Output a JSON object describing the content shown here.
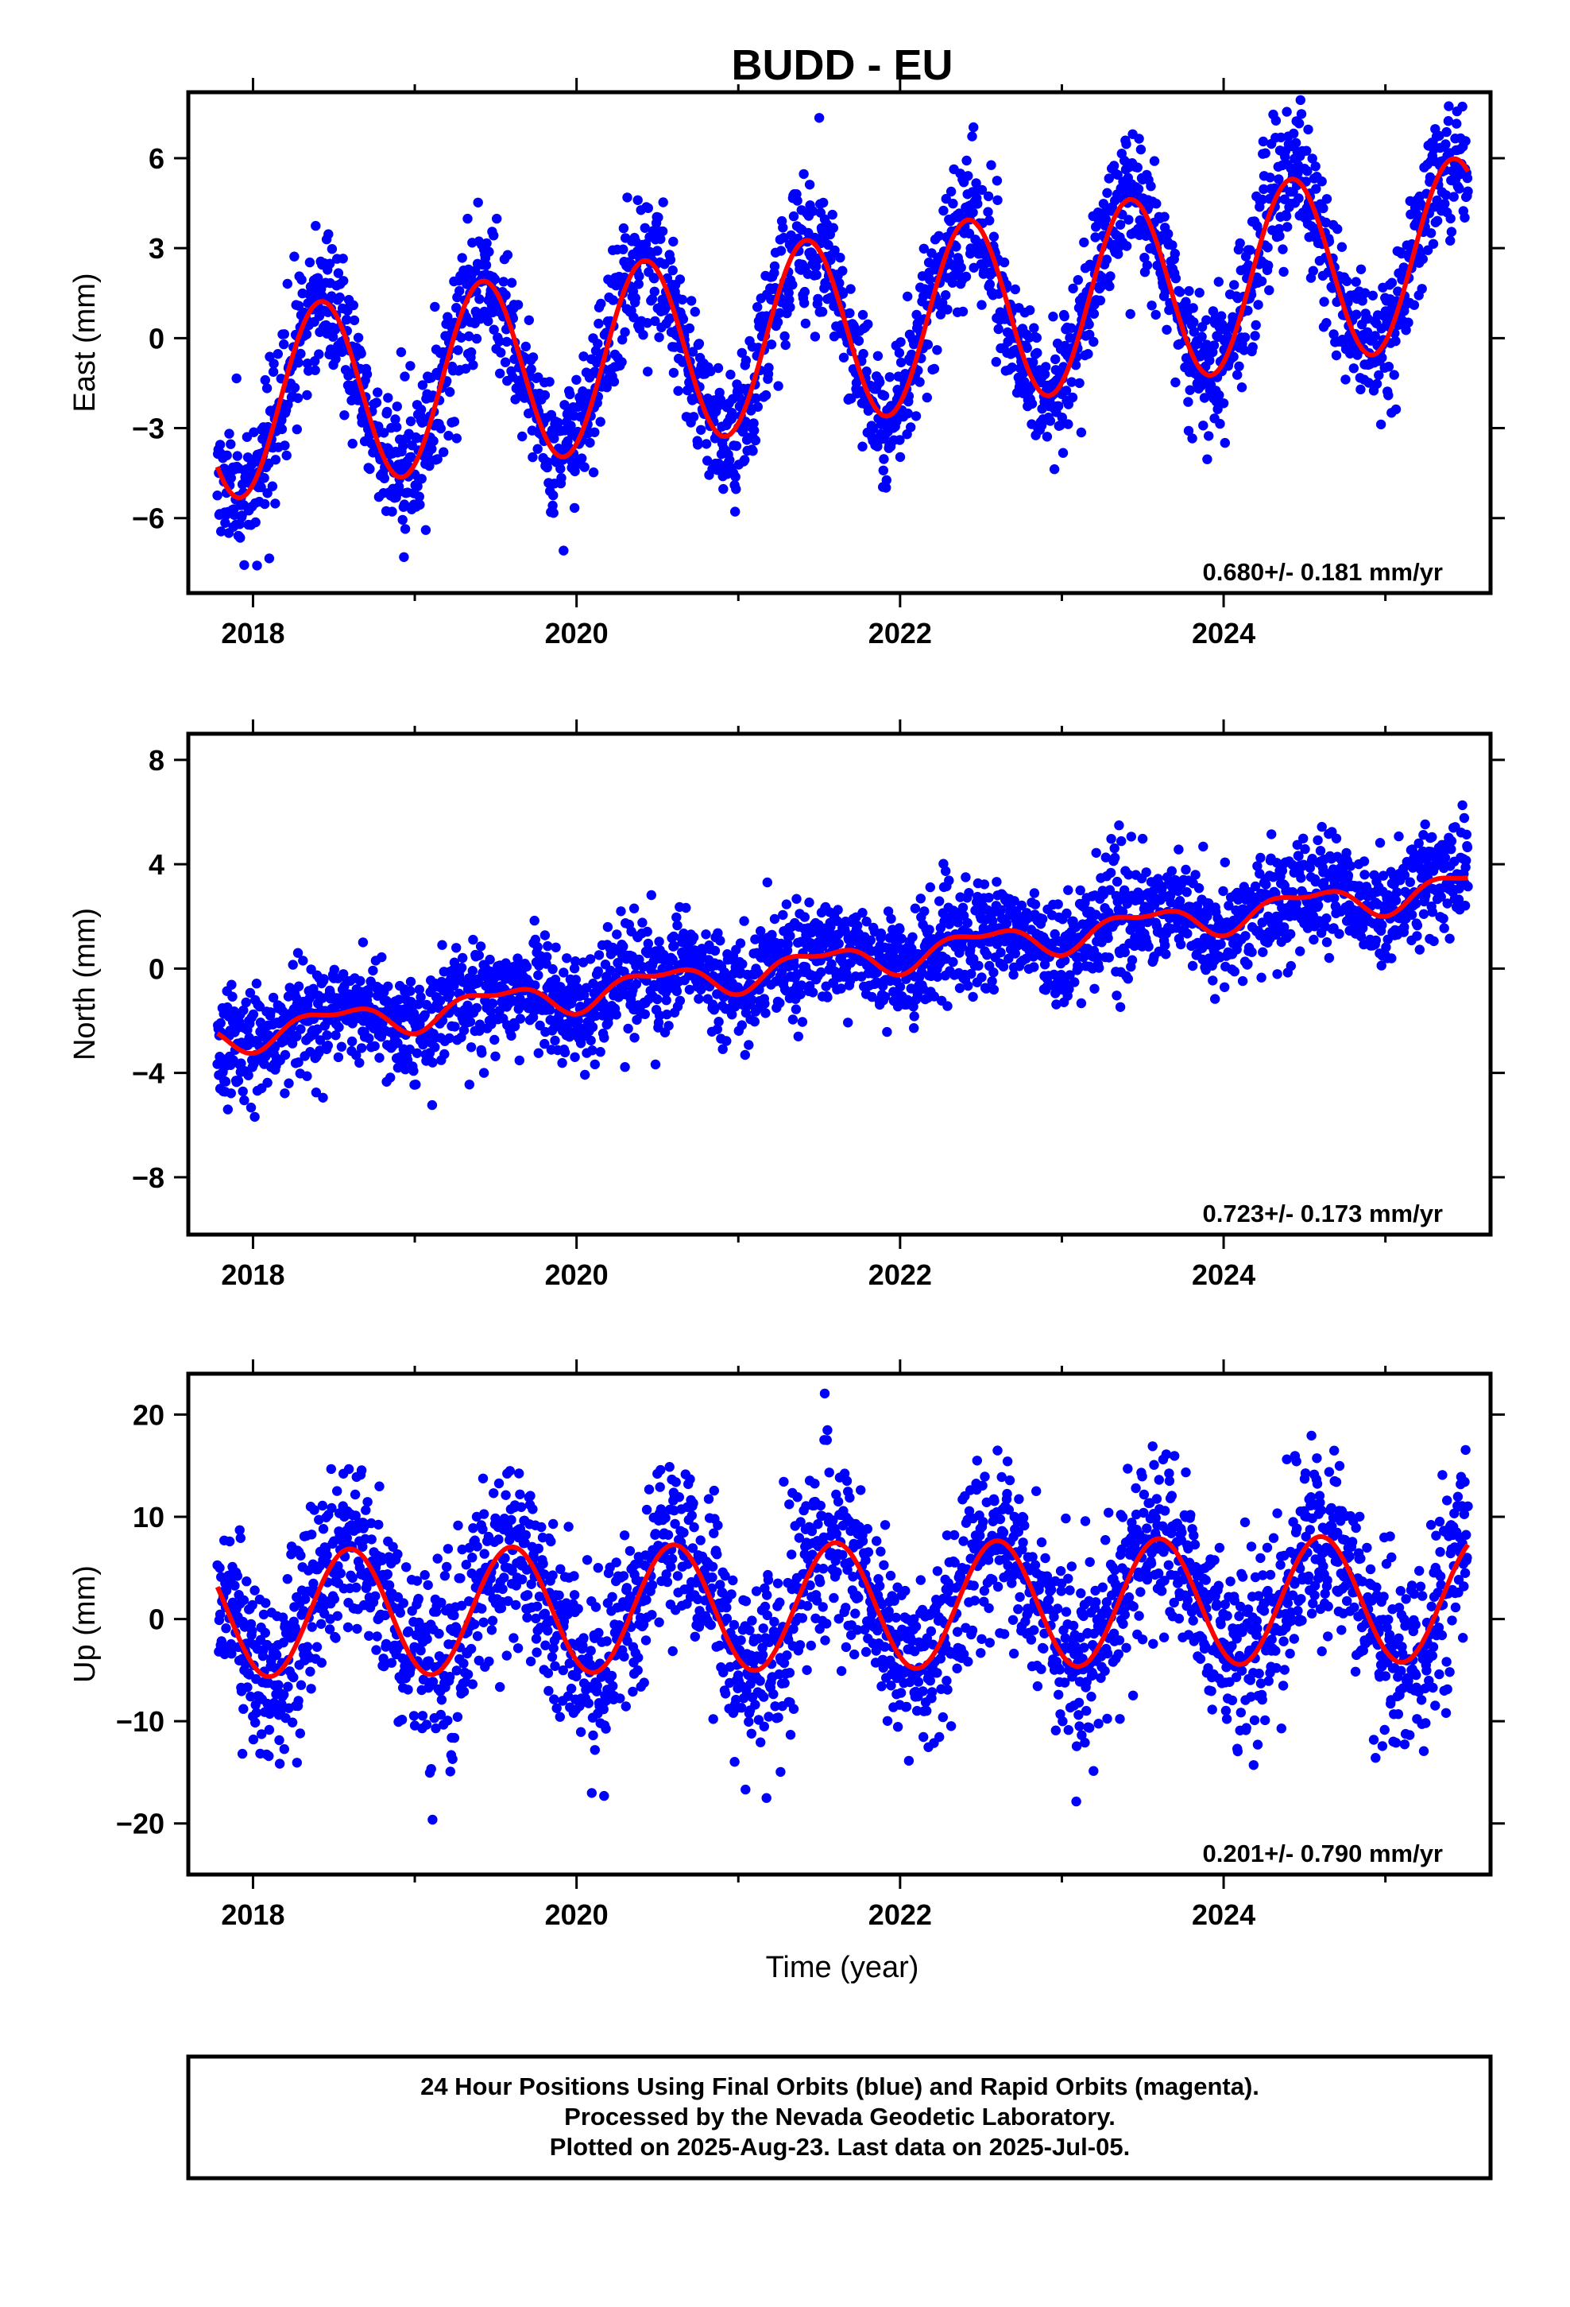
{
  "chart_data": {
    "title": "BUDD - EU",
    "xlabel": "Time (year)",
    "x_tick_labels": [
      "2018",
      "2020",
      "2022",
      "2024"
    ],
    "x_ticks": [
      2018,
      2020,
      2022,
      2024
    ],
    "xlim": [
      2017.6,
      2025.65
    ],
    "panels": [
      {
        "type": "scatter",
        "ylabel": "East (mm)",
        "ylim": [
          -8.5,
          8.2
        ],
        "y_ticks": [
          -6,
          -3,
          0,
          3,
          6
        ],
        "y_tick_labels": [
          "−6",
          "−3",
          "0",
          "3",
          "6"
        ],
        "rate_label": "0.680+/- 0.181 mm/yr",
        "model_seed": 11,
        "trend": {
          "t0": 2017.8,
          "y0": -2.3,
          "slope": 0.68
        },
        "seasonal": {
          "amp": 3.1,
          "phase_peak": 0.42
        },
        "semiannual": {
          "amp": 0.0,
          "phase_peak": 0.0
        },
        "noise": 1.1,
        "series": [
          {
            "name": "Final Orbits",
            "color": "#0000ff",
            "time_range": [
              2017.78,
              2025.51
            ],
            "n_points": 2750
          },
          {
            "name": "fit",
            "color": "#ff0000",
            "time_range": [
              2017.78,
              2025.51
            ]
          }
        ]
      },
      {
        "type": "scatter",
        "ylabel": "North (mm)",
        "ylim": [
          -10.2,
          9.0
        ],
        "y_ticks": [
          -8,
          -4,
          0,
          4,
          8
        ],
        "y_tick_labels": [
          "−8",
          "−4",
          "0",
          "4",
          "8"
        ],
        "rate_label": "0.723+/- 0.173 mm/yr",
        "model_seed": 23,
        "trend": {
          "t0": 2017.8,
          "y0": -2.6,
          "slope": 0.75
        },
        "seasonal": {
          "amp": 0.55,
          "phase_peak": 0.5
        },
        "semiannual": {
          "amp": 0.25,
          "phase_peak": 0.25
        },
        "noise": 1.0,
        "series": [
          {
            "name": "Final Orbits",
            "color": "#0000ff",
            "time_range": [
              2017.78,
              2025.51
            ],
            "n_points": 2750
          },
          {
            "name": "fit",
            "color": "#ff0000",
            "time_range": [
              2017.78,
              2025.51
            ]
          }
        ]
      },
      {
        "type": "scatter",
        "ylabel": "Up (mm)",
        "ylim": [
          -25,
          24
        ],
        "y_ticks": [
          -20,
          -10,
          0,
          10,
          20
        ],
        "y_tick_labels": [
          "−20",
          "−10",
          "0",
          "10",
          "20"
        ],
        "rate_label": "0.201+/- 0.790 mm/yr",
        "model_seed": 37,
        "trend": {
          "t0": 2017.8,
          "y0": 0.5,
          "slope": 0.2
        },
        "seasonal": {
          "amp": 6.2,
          "phase_peak": 0.6
        },
        "semiannual": {
          "amp": 0.0,
          "phase_peak": 0.0
        },
        "noise": 4.3,
        "series": [
          {
            "name": "Final Orbits",
            "color": "#0000ff",
            "time_range": [
              2017.78,
              2025.51
            ],
            "n_points": 2750
          },
          {
            "name": "fit",
            "color": "#ff0000",
            "time_range": [
              2017.78,
              2025.51
            ]
          }
        ]
      }
    ],
    "footer": [
      "24 Hour Positions Using Final Orbits (blue) and Rapid Orbits (magenta).",
      "Processed by the Nevada Geodetic Laboratory.",
      "Plotted on 2025-Aug-23. Last data on 2025-Jul-05."
    ]
  }
}
